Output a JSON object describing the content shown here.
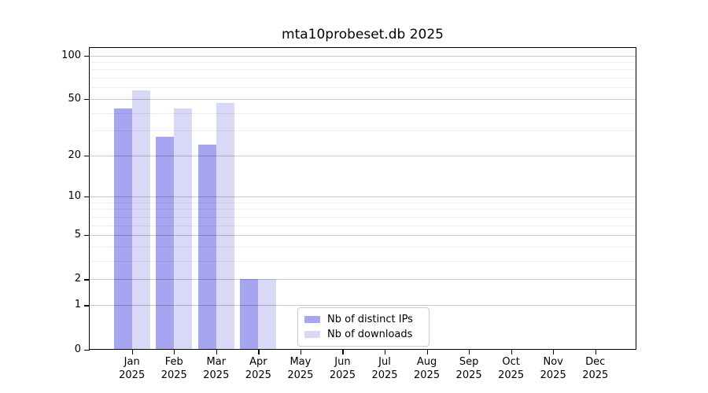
{
  "title": "mta10probeset.db 2025",
  "chart_data": {
    "type": "bar",
    "title": "mta10probeset.db 2025",
    "x_axis": {
      "months": [
        "Jan",
        "Feb",
        "Mar",
        "Apr",
        "May",
        "Jun",
        "Jul",
        "Aug",
        "Sep",
        "Oct",
        "Nov",
        "Dec"
      ],
      "year": "2025"
    },
    "y_axis": {
      "scale": "log1p",
      "major_ticks": [
        0,
        1,
        2,
        5,
        10,
        20,
        50,
        100
      ],
      "minor_ticks": [
        3,
        4,
        6,
        7,
        8,
        9,
        30,
        40,
        60,
        70,
        80,
        90
      ],
      "range": [
        0,
        114
      ]
    },
    "series": [
      {
        "name": "Nb of distinct IPs",
        "color": "#a5a5f0",
        "values": [
          43,
          27,
          24,
          2,
          0,
          0,
          0,
          0,
          0,
          0,
          0,
          0
        ]
      },
      {
        "name": "Nb of downloads",
        "color": "#d9d9f7",
        "values": [
          57,
          43,
          47,
          2,
          0,
          0,
          0,
          0,
          0,
          0,
          0,
          0
        ]
      }
    ],
    "legend": {
      "position": "bottom-center",
      "items": [
        "Nb of distinct IPs",
        "Nb of downloads"
      ]
    },
    "grid": true
  },
  "colors": {
    "background": "#ffffff",
    "axis": "#000000",
    "major_grid": "rgba(0,0,0,0.21)",
    "minor_grid": "rgba(0,0,0,0.07)",
    "bar_distinct_ips": "#a5a5f0",
    "bar_downloads": "#d9d9f7",
    "legend_border": "#cccccc"
  }
}
